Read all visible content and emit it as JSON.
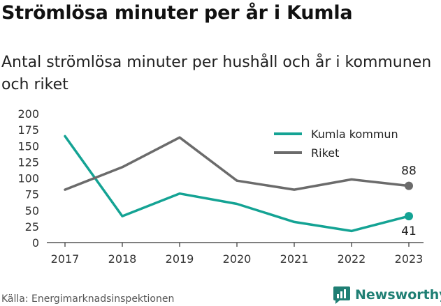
{
  "title": "Strömlösa minuter per år i Kumla",
  "subtitle": "Antal strömlösa minuter per hushåll och år i kommunen och riket",
  "source": "Källa: Energimarknadsinspektionen",
  "brand": {
    "name": "Newsworthy",
    "icon": "newsworthy-logo-icon",
    "color": "#1f7f74"
  },
  "chart_data": {
    "type": "line",
    "title": "Strömlösa minuter per år i Kumla",
    "subtitle": "Antal strömlösa minuter per hushåll och år i kommunen och riket",
    "x": [
      "2017",
      "2018",
      "2019",
      "2020",
      "2021",
      "2022",
      "2023"
    ],
    "series": [
      {
        "name": "Kumla kommun",
        "color": "#14a394",
        "values": [
          165,
          41,
          76,
          60,
          32,
          18,
          41
        ]
      },
      {
        "name": "Riket",
        "color": "#6b6b6b",
        "values": [
          82,
          117,
          163,
          96,
          82,
          98,
          88
        ]
      }
    ],
    "end_labels": [
      "41",
      "88"
    ],
    "y_ticks": [
      "0",
      "25",
      "50",
      "75",
      "100",
      "125",
      "150",
      "175",
      "200"
    ],
    "ylim": [
      0,
      200
    ],
    "grid": false,
    "legend": "top-right",
    "xlabel": "",
    "ylabel": ""
  }
}
